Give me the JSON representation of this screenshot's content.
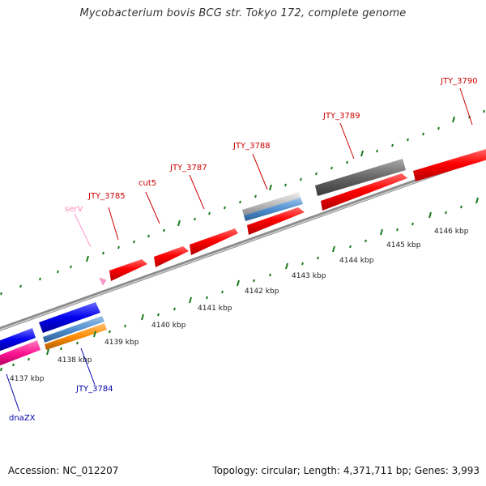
{
  "title": "Mycobacterium bovis BCG str. Tokyo 172, complete genome",
  "footer": {
    "accession": "Accession: NC_012207",
    "info": "Topology: circular; Length: 4,371,711 bp; Genes: 3,993"
  },
  "colors": {
    "cds": "#ff0000",
    "trna": "#ff99cc",
    "gray_feature": "#707070",
    "blue_feature": "#0000ee",
    "light_blue_feature": "#5b9bd5",
    "orange_feature": "#ff8c00",
    "pink_feature": "#ff1493",
    "tick": "#1a7a1a",
    "backbone": "#8c8c8c",
    "label_red": "#cc0000",
    "label_blue": "#0000aa",
    "label_pink": "#ff88bb"
  },
  "scale_labels": [
    "4137 kbp",
    "4138 kbp",
    "4139 kbp",
    "4140 kbp",
    "4141 kbp",
    "4142 kbp",
    "4143 kbp",
    "4144 kbp",
    "4145 kbp",
    "4146 kbp"
  ],
  "gene_labels": {
    "jty3785": "JTY_3785",
    "cut5": "cut5",
    "jty3787": "JTY_3787",
    "jty3788": "JTY_3788",
    "jty3789": "JTY_3789",
    "jty3790": "JTY_3790",
    "serv": "serV",
    "jty3784": "JTY_3784",
    "dnazx": "dnaZX"
  }
}
